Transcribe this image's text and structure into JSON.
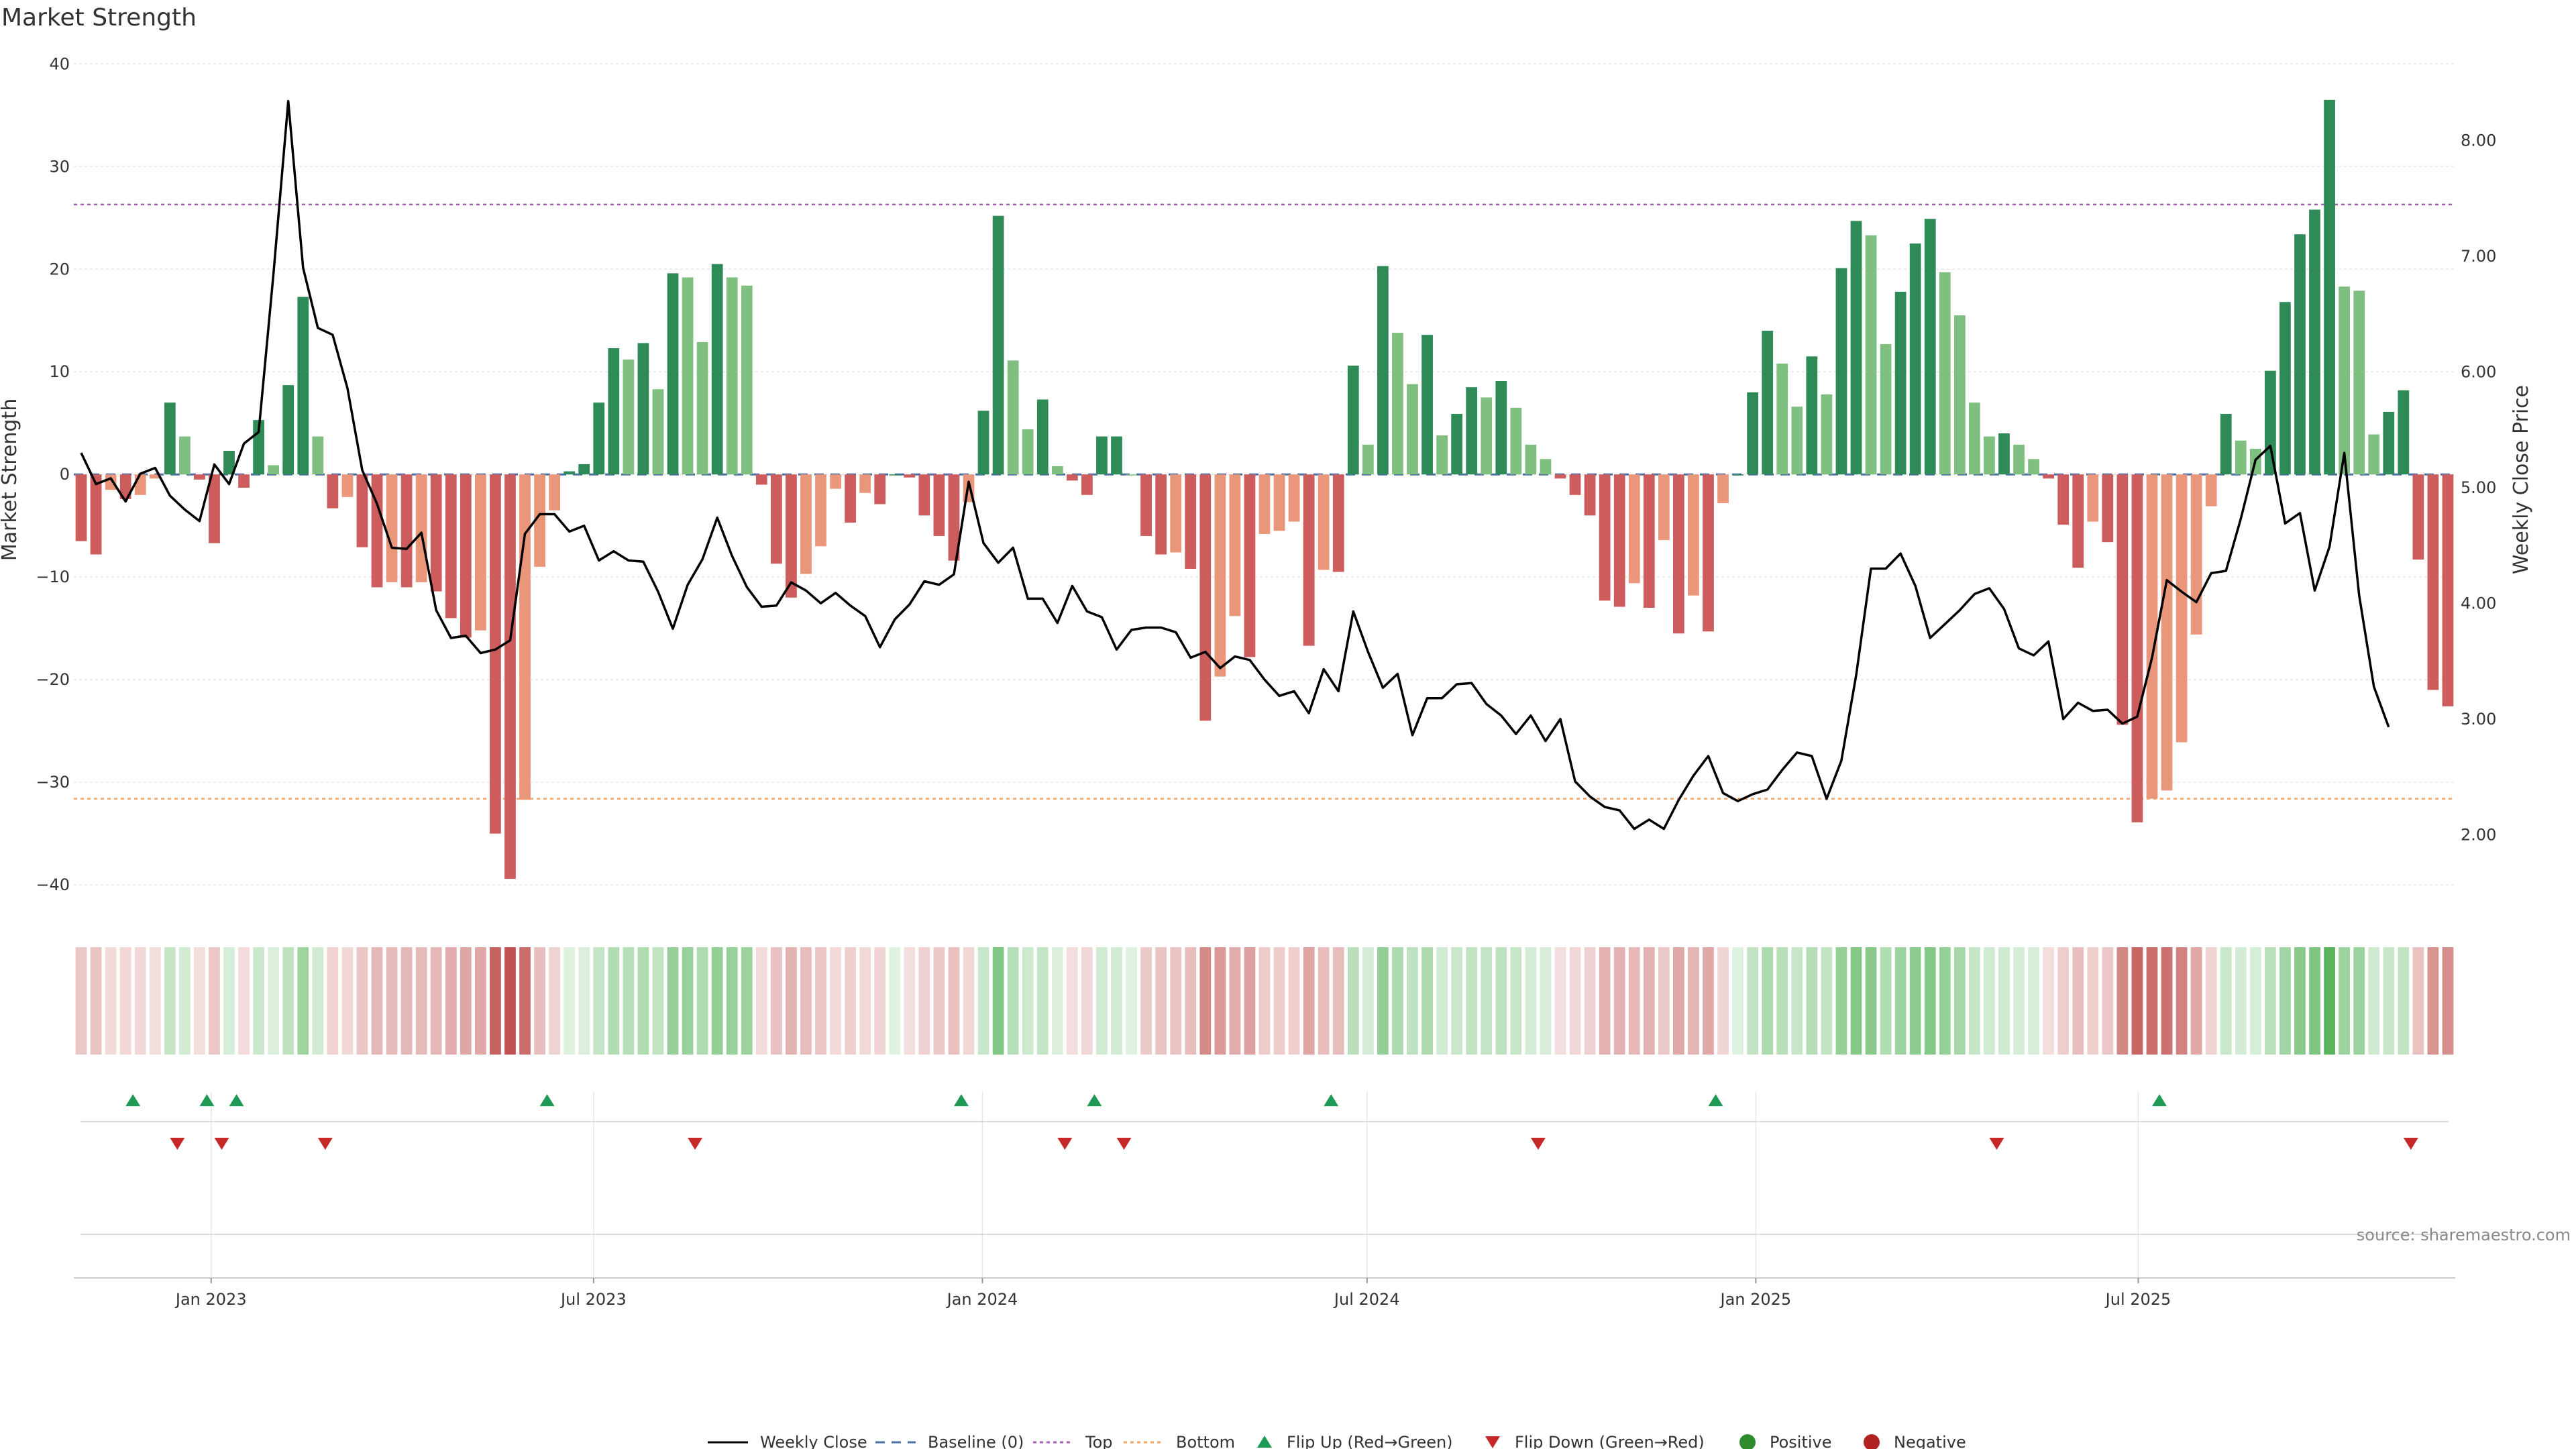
{
  "title": "Market Strength",
  "source": "source: sharemaestro.com",
  "colors": {
    "pos_strong": "#2e8b57",
    "pos_light": "#7fbf7f",
    "neg_strong": "#cd5c5c",
    "neg_light": "#e9967a",
    "line": "#000000",
    "baseline": "#4a6fa5",
    "top": "#a05cb0",
    "bottom": "#f4a460",
    "flip_up": "#1e9a55",
    "flip_down": "#c62828",
    "positive": "#2e8b2e",
    "negative": "#b22222",
    "grid": "#e6e6e6"
  },
  "chart_data": {
    "type": "bar",
    "title": "Market Strength",
    "ylabel": "Market Strength",
    "y2label": "Weekly Close Price",
    "ylim": [
      -43,
      41
    ],
    "y2lim": [
      1.3,
      8.75
    ],
    "yticks": [
      "40",
      "30",
      "20",
      "10",
      "0",
      "−10",
      "−20",
      "−30",
      "−40"
    ],
    "ytick_values": [
      40,
      30,
      20,
      10,
      0,
      -10,
      -20,
      -30,
      -40
    ],
    "y2ticks": [
      "8.00",
      "7.00",
      "6.00",
      "5.00",
      "4.00",
      "3.00",
      "2.00"
    ],
    "y2tick_values": [
      8,
      7,
      6,
      5,
      4,
      3,
      2
    ],
    "x_start": "2022-10-28",
    "x_end": "2025-11-28",
    "xticks": [
      {
        "date": "2023-01-01",
        "label": "Jan 2023"
      },
      {
        "date": "2023-07-01",
        "label": "Jul 2023"
      },
      {
        "date": "2024-01-01",
        "label": "Jan 2024"
      },
      {
        "date": "2024-07-01",
        "label": "Jul 2024"
      },
      {
        "date": "2025-01-01",
        "label": "Jan 2025"
      },
      {
        "date": "2025-07-01",
        "label": "Jul 2025"
      }
    ],
    "series": [
      {
        "name": "Weekly Close",
        "type": "line"
      },
      {
        "name": "Baseline (0)",
        "type": "hline",
        "value": 0
      },
      {
        "name": "Top",
        "type": "hline",
        "value": 26.3
      },
      {
        "name": "Bottom",
        "type": "hline",
        "value": -31.6
      },
      {
        "name": "Flip Up (Red→Green)",
        "type": "marker"
      },
      {
        "name": "Flip Down (Green→Red)",
        "type": "marker"
      },
      {
        "name": "Positive",
        "type": "marker"
      },
      {
        "name": "Negative",
        "type": "marker"
      }
    ],
    "strength": [
      -6.5,
      -7.8,
      -1.5,
      -2.4,
      -2,
      -0.4,
      7,
      3.7,
      -0.5,
      -6.7,
      2.3,
      -1.3,
      5.3,
      0.9,
      8.7,
      17.3,
      3.7,
      -3.3,
      -2.2,
      -7.1,
      -11,
      -10.5,
      -11,
      -10.5,
      -11.4,
      -14,
      -15.9,
      -15.2,
      -35,
      -39.4,
      -31.7,
      -9,
      -3.5,
      0.3,
      1,
      7,
      12.3,
      11.2,
      12.8,
      8.3,
      19.6,
      19.2,
      12.9,
      20.5,
      19.2,
      18.4,
      -1,
      -8.7,
      -12,
      -9.7,
      -7,
      -1.4,
      -4.7,
      -1.8,
      -2.9,
      0,
      -0.3,
      -4,
      -6,
      -8.4,
      -2.7,
      6.2,
      25.2,
      11.1,
      4.4,
      7.3,
      0.8,
      -0.6,
      -2,
      3.7,
      3.7,
      0,
      -6,
      -7.8,
      -7.6,
      -9.2,
      -24,
      -19.7,
      -13.8,
      -17.8,
      -5.8,
      -5.5,
      -4.6,
      -16.7,
      -9.3,
      -9.5,
      10.6,
      2.9,
      20.3,
      13.8,
      8.8,
      13.6,
      3.8,
      5.9,
      8.5,
      7.5,
      9.1,
      6.5,
      2.9,
      1.5,
      -0.4,
      -2,
      -4,
      -12.3,
      -12.9,
      -10.6,
      -13,
      -6.4,
      -15.5,
      -11.8,
      -15.3,
      -2.8,
      0,
      8,
      14,
      10.8,
      6.6,
      11.5,
      7.8,
      20.1,
      24.7,
      23.3,
      12.7,
      17.8,
      22.5,
      24.9,
      19.7,
      15.5,
      7,
      3.7,
      4,
      2.9,
      1.5,
      -0.4,
      -4.9,
      -9.1,
      -4.6,
      -6.6,
      -24.4,
      -33.9,
      -31.6,
      -30.8,
      -26.1,
      -15.6,
      -3.1,
      5.9,
      3.3,
      2.5,
      10.1,
      16.8,
      23.4,
      25.8,
      36.5,
      18.3,
      17.9,
      3.9,
      6.1,
      8.2,
      -8.3,
      -21,
      -22.6
    ],
    "close": [
      5.3,
      5.03,
      5.08,
      4.88,
      5.12,
      5.17,
      4.93,
      4.81,
      4.71,
      5.2,
      5.03,
      5.38,
      5.48,
      6.85,
      8.34,
      6.9,
      6.38,
      6.32,
      5.86,
      5.15,
      4.86,
      4.48,
      4.47,
      4.61,
      3.94,
      3.7,
      3.72,
      3.57,
      3.6,
      3.68,
      4.6,
      4.77,
      4.77,
      4.62,
      4.67,
      4.37,
      4.45,
      4.37,
      4.36,
      4.1,
      3.78,
      4.16,
      4.38,
      4.74,
      4.41,
      4.14,
      3.97,
      3.98,
      4.18,
      4.11,
      4.0,
      4.09,
      3.98,
      3.89,
      3.62,
      3.86,
      3.99,
      4.19,
      4.16,
      4.25,
      5.05,
      4.52,
      4.35,
      4.48,
      4.04,
      4.04,
      3.83,
      4.15,
      3.93,
      3.88,
      3.6,
      3.77,
      3.79,
      3.79,
      3.75,
      3.53,
      3.58,
      3.44,
      3.54,
      3.51,
      3.34,
      3.2,
      3.24,
      3.05,
      3.43,
      3.24,
      3.93,
      3.58,
      3.27,
      3.39,
      2.86,
      3.18,
      3.18,
      3.3,
      3.31,
      3.13,
      3.03,
      2.87,
      3.03,
      2.81,
      3.0,
      2.46,
      2.33,
      2.24,
      2.21,
      2.05,
      2.13,
      2.05,
      2.3,
      2.51,
      2.68,
      2.36,
      2.29,
      2.35,
      2.39,
      2.56,
      2.71,
      2.68,
      2.31,
      2.64,
      3.38,
      4.3,
      4.3,
      4.43,
      4.15,
      3.7,
      3.82,
      3.94,
      4.08,
      4.13,
      3.95,
      3.61,
      3.55,
      3.67,
      3.0,
      3.14,
      3.07,
      3.08,
      2.96,
      3.02,
      3.53,
      4.2,
      4.1,
      4.01,
      4.26,
      4.28,
      4.73,
      5.24,
      5.36,
      4.69,
      4.78,
      4.11,
      4.49,
      5.3,
      4.07,
      3.28,
      2.93
    ],
    "flip_up_dates": [
      "2022-11-25",
      "2022-12-30",
      "2023-01-13",
      "2023-06-09",
      "2023-12-22",
      "2024-02-23",
      "2024-06-14",
      "2024-12-13",
      "2025-07-11"
    ],
    "flip_down_dates": [
      "2022-12-16",
      "2023-01-06",
      "2023-02-24",
      "2023-08-18",
      "2024-02-09",
      "2024-03-08",
      "2024-09-20",
      "2025-04-25",
      "2025-11-07"
    ]
  }
}
